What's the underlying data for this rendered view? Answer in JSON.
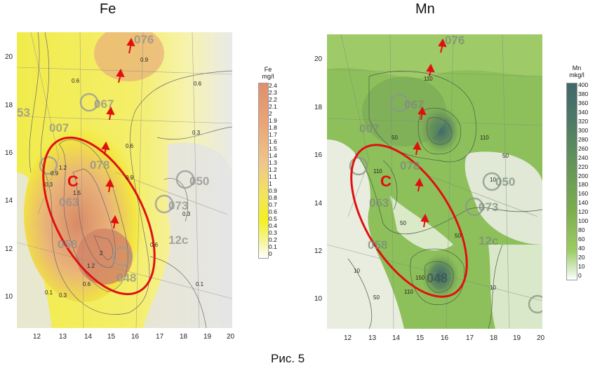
{
  "caption": "Рис. 5",
  "panels": [
    {
      "id": "fe",
      "title": "Fe",
      "legend_title": [
        "Fe",
        "mg/l"
      ],
      "legend_ticks": [
        "2.4",
        "2.3",
        "2.2",
        "2.1",
        "2",
        "1.9",
        "1.8",
        "1.7",
        "1.6",
        "1.5",
        "1.4",
        "1.3",
        "1.2",
        "1.1",
        "1",
        "0.9",
        "0.8",
        "0.7",
        "0.6",
        "0.5",
        "0.4",
        "0.3",
        "0.2",
        "0.1",
        "0"
      ],
      "colors": {
        "low": "#ffffff",
        "mid": "#f3f020",
        "high": "#e0956a",
        "line": "#e01010"
      },
      "x_ticks": [
        "12",
        "13",
        "14",
        "15",
        "16",
        "17",
        "18",
        "19",
        "20"
      ],
      "y_ticks": [
        "20",
        "18",
        "16",
        "14",
        "12",
        "10"
      ],
      "zone_label": "C",
      "contour_labels": [
        "0.9",
        "0.6",
        "0.6",
        "0.3",
        "0.6",
        "0.9",
        "1.2",
        "1.5",
        "0.9",
        "0.3",
        "0.6",
        "2",
        "1.2",
        "0.6",
        "0.3",
        "0.1",
        "0.1",
        "0.3"
      ],
      "well_labels": [
        "076",
        "067",
        "007",
        "078",
        "063",
        "050",
        "073",
        "058",
        "12c",
        "048",
        "53"
      ]
    },
    {
      "id": "mn",
      "title": "Mn",
      "legend_title": [
        "Mn",
        "mkg/l"
      ],
      "legend_ticks": [
        "400",
        "380",
        "360",
        "340",
        "320",
        "300",
        "280",
        "260",
        "240",
        "220",
        "200",
        "180",
        "160",
        "140",
        "120",
        "100",
        "80",
        "60",
        "40",
        "20",
        "10",
        "0"
      ],
      "colors": {
        "low": "#ffffff",
        "mid": "#8cc04a",
        "high": "#44706c",
        "line": "#e01010"
      },
      "x_ticks": [
        "12",
        "13",
        "14",
        "15",
        "16",
        "17",
        "18",
        "19",
        "20"
      ],
      "y_ticks": [
        "20",
        "18",
        "16",
        "14",
        "12",
        "10"
      ],
      "zone_label": "C",
      "contour_labels": [
        "110",
        "50",
        "110",
        "110",
        "50",
        "10",
        "50",
        "50",
        "150",
        "110",
        "50",
        "10",
        "10"
      ],
      "well_labels": [
        "076",
        "067",
        "007",
        "078",
        "063",
        "050",
        "073",
        "058",
        "12c",
        "048"
      ]
    }
  ]
}
